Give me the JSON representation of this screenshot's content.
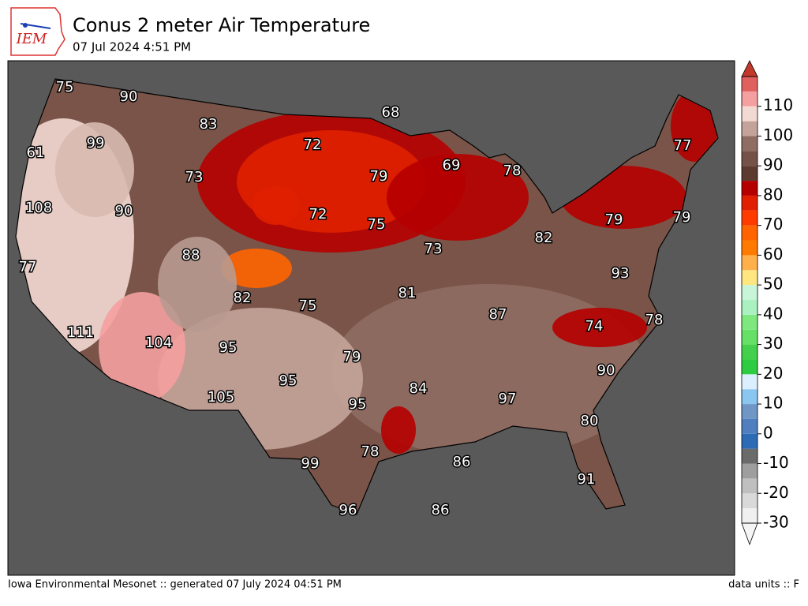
{
  "header": {
    "logo": "IEM",
    "title": "Conus 2 meter Air Temperature",
    "subtitle": "07 Jul 2024 4:51 PM"
  },
  "map": {
    "labels": [
      75,
      90,
      83,
      68,
      99,
      61,
      72,
      77,
      79,
      69,
      78,
      73,
      108,
      90,
      72,
      75,
      79,
      79,
      82,
      73,
      88,
      93,
      77,
      82,
      81,
      75,
      87,
      74,
      78,
      111,
      104,
      95,
      79,
      90,
      95,
      84,
      105,
      97,
      95,
      80,
      78,
      99,
      86,
      91,
      96,
      86
    ]
  },
  "colorbar": {
    "range": [
      -30,
      120
    ],
    "ticks": [
      -30,
      -20,
      -10,
      0,
      10,
      20,
      30,
      40,
      50,
      60,
      70,
      80,
      90,
      100,
      110
    ],
    "colors": [
      "#f0f0f0",
      "#d9d9d9",
      "#bfbfbf",
      "#9e9e9e",
      "#6b6b6b",
      "#2e6bb5",
      "#4f7fbe",
      "#6f96c4",
      "#8ac6f0",
      "#dcefff",
      "#2ecc40",
      "#44d04c",
      "#66e066",
      "#7ee87e",
      "#aaf0c0",
      "#c8f5d8",
      "#ffe680",
      "#ffb04a",
      "#ff7a00",
      "#ff6400",
      "#ff3c00",
      "#e02000",
      "#b50000",
      "#5c3a30",
      "#745247",
      "#8f6d63",
      "#c4a49a",
      "#f2d9d2",
      "#f4a0a0",
      "#e06060"
    ],
    "low_color": "#f5f5f5",
    "high_color": "#c0392b"
  },
  "footer": {
    "left": "Iowa Environmental Mesonet :: generated 07 July 2024 04:51 PM",
    "right": "data units :: F"
  }
}
